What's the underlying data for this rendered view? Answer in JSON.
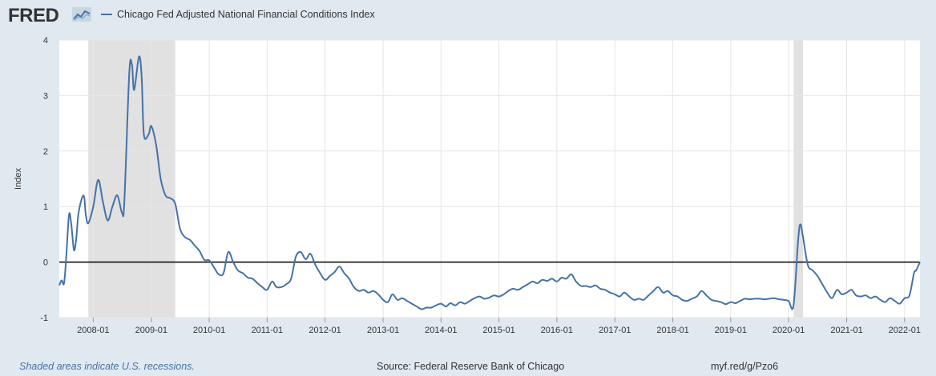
{
  "header": {
    "logo_text": "FRED",
    "logo_icon": "line-chart-icon",
    "legend_label": "Chicago Fed Adjusted National Financial Conditions Index"
  },
  "footer": {
    "recession_note": "Shaded areas indicate U.S. recessions.",
    "source": "Source: Federal Reserve Bank of Chicago",
    "short_url": "myf.red/g/Pzo6"
  },
  "colors": {
    "background": "#e1e9f0",
    "plot_background": "#ffffff",
    "series": "#4572a7",
    "recession": "#e1e1e1",
    "zero_line": "#000000",
    "grid": "#e6e6e6"
  },
  "chart_data": {
    "type": "line",
    "title": "",
    "xlabel": "",
    "ylabel": "Index",
    "ylim": [
      -1,
      4
    ],
    "xlim": [
      "2007-06-01",
      "2022-04-08"
    ],
    "yticks": [
      -1,
      0,
      1,
      2,
      3,
      4
    ],
    "xticks": [
      "2008-01",
      "2009-01",
      "2010-01",
      "2011-01",
      "2012-01",
      "2013-01",
      "2014-01",
      "2015-01",
      "2016-01",
      "2017-01",
      "2018-01",
      "2019-01",
      "2020-01",
      "2021-01",
      "2022-01"
    ],
    "grid": true,
    "reference_line": 0,
    "recessions": [
      [
        "2007-12-01",
        "2009-06-01"
      ],
      [
        "2020-02-01",
        "2020-04-01"
      ]
    ],
    "series": [
      {
        "name": "Chicago Fed Adjusted National Financial Conditions Index",
        "points": [
          [
            "2007-06-01",
            -0.42
          ],
          [
            "2007-06-15",
            -0.33
          ],
          [
            "2007-07-01",
            -0.38
          ],
          [
            "2007-07-15",
            0.1
          ],
          [
            "2007-08-01",
            0.85
          ],
          [
            "2007-08-15",
            0.7
          ],
          [
            "2007-09-01",
            0.22
          ],
          [
            "2007-09-15",
            0.4
          ],
          [
            "2007-10-01",
            0.9
          ],
          [
            "2007-11-01",
            1.2
          ],
          [
            "2007-11-15",
            0.85
          ],
          [
            "2007-12-01",
            0.7
          ],
          [
            "2008-01-01",
            1.0
          ],
          [
            "2008-02-01",
            1.48
          ],
          [
            "2008-03-01",
            1.1
          ],
          [
            "2008-04-01",
            0.75
          ],
          [
            "2008-05-01",
            1.0
          ],
          [
            "2008-06-01",
            1.2
          ],
          [
            "2008-07-01",
            0.88
          ],
          [
            "2008-07-15",
            1.1
          ],
          [
            "2008-08-15",
            3.4
          ],
          [
            "2008-09-01",
            3.55
          ],
          [
            "2008-09-15",
            3.1
          ],
          [
            "2008-10-15",
            3.7
          ],
          [
            "2008-11-01",
            3.35
          ],
          [
            "2008-11-15",
            2.3
          ],
          [
            "2008-12-15",
            2.3
          ],
          [
            "2009-01-01",
            2.45
          ],
          [
            "2009-02-01",
            2.1
          ],
          [
            "2009-03-01",
            1.5
          ],
          [
            "2009-04-01",
            1.2
          ],
          [
            "2009-05-01",
            1.15
          ],
          [
            "2009-06-01",
            1.05
          ],
          [
            "2009-07-01",
            0.6
          ],
          [
            "2009-08-01",
            0.45
          ],
          [
            "2009-09-01",
            0.4
          ],
          [
            "2009-10-01",
            0.3
          ],
          [
            "2009-11-01",
            0.2
          ],
          [
            "2009-12-01",
            0.04
          ],
          [
            "2010-01-01",
            0.03
          ],
          [
            "2010-02-01",
            -0.1
          ],
          [
            "2010-03-01",
            -0.22
          ],
          [
            "2010-04-01",
            -0.2
          ],
          [
            "2010-05-01",
            0.18
          ],
          [
            "2010-06-01",
            0.0
          ],
          [
            "2010-07-01",
            -0.15
          ],
          [
            "2010-08-01",
            -0.2
          ],
          [
            "2010-09-01",
            -0.28
          ],
          [
            "2010-10-01",
            -0.3
          ],
          [
            "2010-11-01",
            -0.38
          ],
          [
            "2010-12-01",
            -0.45
          ],
          [
            "2011-01-01",
            -0.5
          ],
          [
            "2011-02-01",
            -0.35
          ],
          [
            "2011-03-01",
            -0.45
          ],
          [
            "2011-04-01",
            -0.45
          ],
          [
            "2011-05-01",
            -0.4
          ],
          [
            "2011-06-01",
            -0.3
          ],
          [
            "2011-07-01",
            0.1
          ],
          [
            "2011-08-01",
            0.18
          ],
          [
            "2011-09-01",
            0.05
          ],
          [
            "2011-10-01",
            0.15
          ],
          [
            "2011-11-01",
            -0.05
          ],
          [
            "2011-12-01",
            -0.2
          ],
          [
            "2012-01-01",
            -0.32
          ],
          [
            "2012-02-01",
            -0.25
          ],
          [
            "2012-03-01",
            -0.18
          ],
          [
            "2012-04-01",
            -0.08
          ],
          [
            "2012-05-01",
            -0.2
          ],
          [
            "2012-06-01",
            -0.3
          ],
          [
            "2012-07-01",
            -0.45
          ],
          [
            "2012-08-01",
            -0.52
          ],
          [
            "2012-09-01",
            -0.5
          ],
          [
            "2012-10-01",
            -0.55
          ],
          [
            "2012-11-01",
            -0.52
          ],
          [
            "2012-12-01",
            -0.58
          ],
          [
            "2013-01-01",
            -0.68
          ],
          [
            "2013-02-01",
            -0.72
          ],
          [
            "2013-03-01",
            -0.58
          ],
          [
            "2013-04-01",
            -0.68
          ],
          [
            "2013-05-01",
            -0.65
          ],
          [
            "2013-06-01",
            -0.7
          ],
          [
            "2013-07-01",
            -0.75
          ],
          [
            "2013-08-01",
            -0.8
          ],
          [
            "2013-09-01",
            -0.85
          ],
          [
            "2013-10-01",
            -0.82
          ],
          [
            "2013-11-01",
            -0.82
          ],
          [
            "2013-12-01",
            -0.78
          ],
          [
            "2014-01-01",
            -0.75
          ],
          [
            "2014-02-01",
            -0.8
          ],
          [
            "2014-03-01",
            -0.74
          ],
          [
            "2014-04-01",
            -0.78
          ],
          [
            "2014-05-01",
            -0.72
          ],
          [
            "2014-06-01",
            -0.75
          ],
          [
            "2014-07-01",
            -0.7
          ],
          [
            "2014-08-01",
            -0.65
          ],
          [
            "2014-09-01",
            -0.62
          ],
          [
            "2014-10-01",
            -0.66
          ],
          [
            "2014-11-01",
            -0.64
          ],
          [
            "2014-12-01",
            -0.6
          ],
          [
            "2015-01-01",
            -0.62
          ],
          [
            "2015-02-01",
            -0.58
          ],
          [
            "2015-03-01",
            -0.52
          ],
          [
            "2015-04-01",
            -0.48
          ],
          [
            "2015-05-01",
            -0.5
          ],
          [
            "2015-06-01",
            -0.45
          ],
          [
            "2015-07-01",
            -0.4
          ],
          [
            "2015-08-01",
            -0.35
          ],
          [
            "2015-09-01",
            -0.38
          ],
          [
            "2015-10-01",
            -0.32
          ],
          [
            "2015-11-01",
            -0.34
          ],
          [
            "2015-12-01",
            -0.3
          ],
          [
            "2016-01-01",
            -0.35
          ],
          [
            "2016-02-01",
            -0.28
          ],
          [
            "2016-03-01",
            -0.3
          ],
          [
            "2016-04-01",
            -0.22
          ],
          [
            "2016-05-01",
            -0.35
          ],
          [
            "2016-06-01",
            -0.43
          ],
          [
            "2016-07-01",
            -0.43
          ],
          [
            "2016-08-01",
            -0.45
          ],
          [
            "2016-09-01",
            -0.42
          ],
          [
            "2016-10-01",
            -0.48
          ],
          [
            "2016-11-01",
            -0.5
          ],
          [
            "2016-12-01",
            -0.55
          ],
          [
            "2017-01-01",
            -0.58
          ],
          [
            "2017-02-01",
            -0.62
          ],
          [
            "2017-03-01",
            -0.55
          ],
          [
            "2017-04-01",
            -0.62
          ],
          [
            "2017-05-01",
            -0.68
          ],
          [
            "2017-06-01",
            -0.66
          ],
          [
            "2017-07-01",
            -0.68
          ],
          [
            "2017-08-01",
            -0.6
          ],
          [
            "2017-09-01",
            -0.52
          ],
          [
            "2017-10-01",
            -0.45
          ],
          [
            "2017-11-01",
            -0.55
          ],
          [
            "2017-12-01",
            -0.52
          ],
          [
            "2018-01-01",
            -0.6
          ],
          [
            "2018-02-01",
            -0.62
          ],
          [
            "2018-03-01",
            -0.68
          ],
          [
            "2018-04-01",
            -0.7
          ],
          [
            "2018-05-01",
            -0.66
          ],
          [
            "2018-06-01",
            -0.62
          ],
          [
            "2018-07-01",
            -0.52
          ],
          [
            "2018-08-01",
            -0.6
          ],
          [
            "2018-09-01",
            -0.68
          ],
          [
            "2018-10-01",
            -0.7
          ],
          [
            "2018-11-01",
            -0.72
          ],
          [
            "2018-12-01",
            -0.76
          ],
          [
            "2019-01-01",
            -0.72
          ],
          [
            "2019-02-01",
            -0.74
          ],
          [
            "2019-03-01",
            -0.7
          ],
          [
            "2019-04-01",
            -0.66
          ],
          [
            "2019-05-01",
            -0.67
          ],
          [
            "2019-06-01",
            -0.66
          ],
          [
            "2019-07-01",
            -0.66
          ],
          [
            "2019-08-01",
            -0.67
          ],
          [
            "2019-09-01",
            -0.66
          ],
          [
            "2019-10-01",
            -0.65
          ],
          [
            "2019-11-01",
            -0.67
          ],
          [
            "2019-12-01",
            -0.68
          ],
          [
            "2020-01-01",
            -0.7
          ],
          [
            "2020-02-01",
            -0.78
          ],
          [
            "2020-03-01",
            0.4
          ],
          [
            "2020-03-15",
            0.68
          ],
          [
            "2020-04-01",
            0.45
          ],
          [
            "2020-05-01",
            -0.05
          ],
          [
            "2020-06-01",
            -0.15
          ],
          [
            "2020-07-01",
            -0.25
          ],
          [
            "2020-08-01",
            -0.4
          ],
          [
            "2020-09-01",
            -0.55
          ],
          [
            "2020-10-01",
            -0.65
          ],
          [
            "2020-11-01",
            -0.5
          ],
          [
            "2020-12-01",
            -0.58
          ],
          [
            "2021-01-01",
            -0.55
          ],
          [
            "2021-02-01",
            -0.5
          ],
          [
            "2021-03-01",
            -0.6
          ],
          [
            "2021-04-01",
            -0.62
          ],
          [
            "2021-05-01",
            -0.6
          ],
          [
            "2021-06-01",
            -0.65
          ],
          [
            "2021-07-01",
            -0.62
          ],
          [
            "2021-08-01",
            -0.68
          ],
          [
            "2021-09-01",
            -0.72
          ],
          [
            "2021-10-01",
            -0.65
          ],
          [
            "2021-11-01",
            -0.7
          ],
          [
            "2021-12-01",
            -0.75
          ],
          [
            "2022-01-01",
            -0.65
          ],
          [
            "2022-02-01",
            -0.6
          ],
          [
            "2022-03-01",
            -0.2
          ],
          [
            "2022-03-15",
            -0.15
          ],
          [
            "2022-04-08",
            0.0
          ]
        ]
      }
    ]
  }
}
